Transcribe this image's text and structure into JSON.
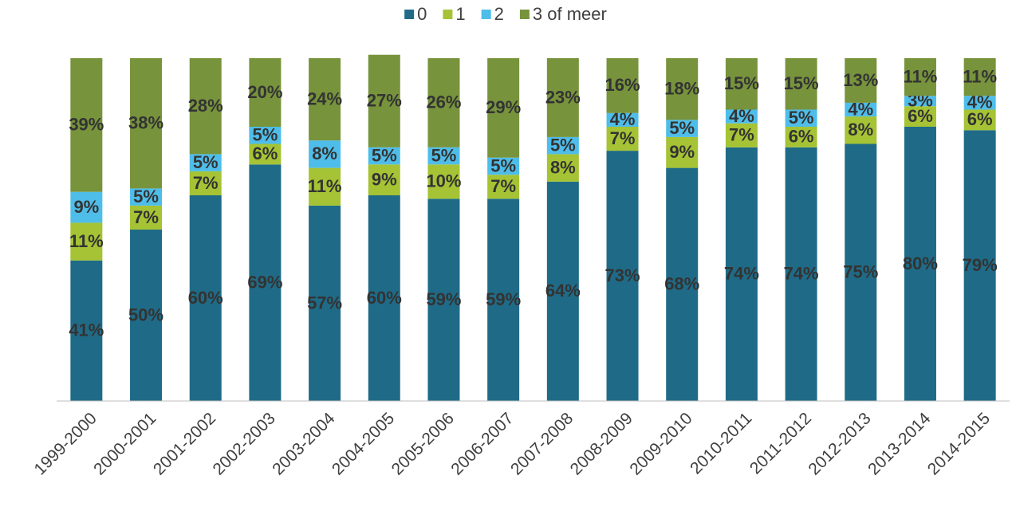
{
  "chart_data": {
    "type": "stacked_bar",
    "categories": [
      "1999-2000",
      "2000-2001",
      "2001-2002",
      "2002-2003",
      "2003-2004",
      "2004-2005",
      "2005-2006",
      "2006-2007",
      "2007-2008",
      "2008-2009",
      "2009-2010",
      "2010-2011",
      "2011-2012",
      "2012-2013",
      "2013-2014",
      "2014-2015"
    ],
    "ylim": [
      0,
      100
    ],
    "legend": "top",
    "series": [
      {
        "name": "0",
        "color": "#1f6b87",
        "values": [
          41,
          50,
          60,
          69,
          57,
          60,
          59,
          59,
          64,
          73,
          68,
          74,
          74,
          75,
          80,
          79
        ],
        "value_labels": [
          "41%",
          "50%",
          "60%",
          "69%",
          "57%",
          "60%",
          "59%",
          "59%",
          "64%",
          "73%",
          "68%",
          "74%",
          "74%",
          "75%",
          "80%",
          "79%"
        ]
      },
      {
        "name": "1",
        "color": "#a5c334",
        "values": [
          11,
          7,
          7,
          6,
          11,
          9,
          10,
          7,
          8,
          7,
          9,
          7,
          6,
          8,
          6,
          6
        ],
        "value_labels": [
          "11%",
          "7%",
          "7%",
          "6%",
          "11%",
          "9%",
          "10%",
          "7%",
          "8%",
          "7%",
          "9%",
          "7%",
          "6%",
          "8%",
          "6%",
          "6%"
        ]
      },
      {
        "name": "2",
        "color": "#4fbde9",
        "values": [
          9,
          5,
          5,
          5,
          8,
          5,
          5,
          5,
          5,
          4,
          5,
          4,
          5,
          4,
          3,
          4
        ],
        "value_labels": [
          "9%",
          "5%",
          "5%",
          "5%",
          "8%",
          "5%",
          "5%",
          "5%",
          "5%",
          "4%",
          "5%",
          "4%",
          "5%",
          "4%",
          "3%",
          "4%"
        ]
      },
      {
        "name": "3 of meer",
        "color": "#77933c",
        "values": [
          39,
          38,
          28,
          20,
          24,
          27,
          26,
          29,
          23,
          16,
          18,
          15,
          15,
          13,
          11,
          11
        ],
        "value_labels": [
          "39%",
          "38%",
          "28%",
          "20%",
          "24%",
          "27%",
          "26%",
          "29%",
          "23%",
          "16%",
          "18%",
          "15%",
          "15%",
          "13%",
          "11%",
          "11%"
        ]
      }
    ]
  }
}
